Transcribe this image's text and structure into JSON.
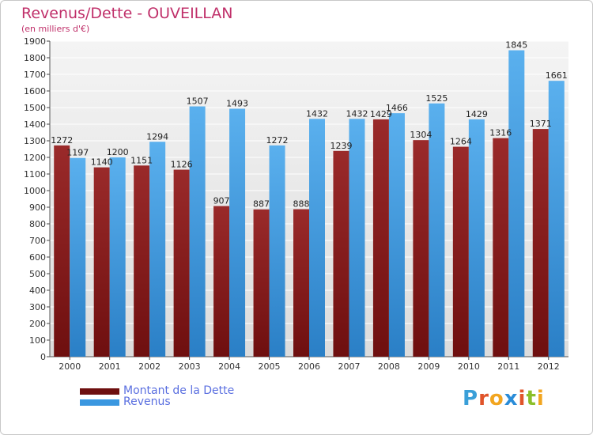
{
  "title": "Revenus/Dette - OUVEILLAN",
  "subtitle": "(en milliers d'€)",
  "colors": {
    "dette": "#6e0f0f",
    "revenus": "#3a97e0",
    "title": "#c0306a",
    "legend_text": "#5a6fe0"
  },
  "chart_data": {
    "type": "bar",
    "title": "Revenus/Dette - OUVEILLAN",
    "ylabel": "(en milliers d'€)",
    "ylim": [
      0,
      1900
    ],
    "ytick_step": 100,
    "grid": true,
    "legend_position": "bottom-left",
    "categories": [
      "2000",
      "2001",
      "2002",
      "2003",
      "2004",
      "2005",
      "2006",
      "2007",
      "2008",
      "2009",
      "2010",
      "2011",
      "2012"
    ],
    "series": [
      {
        "name": "Montant de la Dette",
        "values": [
          1272,
          1140,
          1151,
          1126,
          907,
          887,
          888,
          1239,
          1429,
          1304,
          1264,
          1316,
          1371
        ]
      },
      {
        "name": "Revenus",
        "values": [
          1197,
          1200,
          1294,
          1507,
          1493,
          1272,
          1432,
          1432,
          1466,
          1525,
          1429,
          1845,
          1661
        ]
      }
    ]
  },
  "legend": [
    {
      "label": "Montant de la Dette",
      "color": "#6e0f0f"
    },
    {
      "label": "Revenus",
      "color": "#3a97e0"
    }
  ],
  "logo": {
    "letters": [
      "P",
      "r",
      "o",
      "x",
      "i",
      "t",
      "i"
    ],
    "colors": [
      "#3a9fd8",
      "#e0542a",
      "#f2a51f",
      "#2a8cd8",
      "#e0542a",
      "#8bbf2a",
      "#f2a51f"
    ]
  }
}
